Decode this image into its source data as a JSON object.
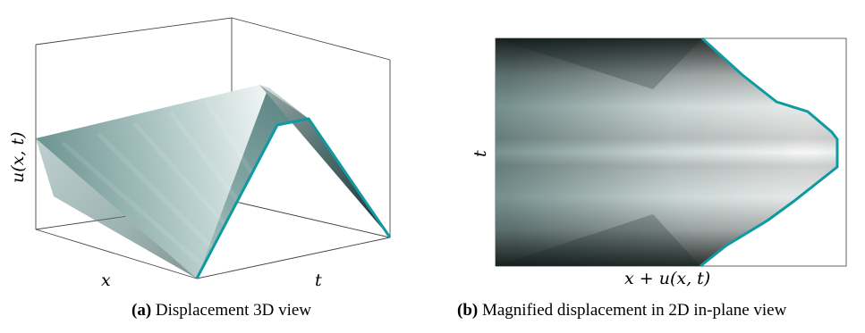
{
  "panel_a": {
    "axis_x": "x",
    "axis_t": "t",
    "axis_u": "u(x, t)",
    "caption_tag": "(a)",
    "caption_text": "Displacement 3D view"
  },
  "panel_b": {
    "axis_x": "x + u(x, t)",
    "axis_t": "t",
    "caption_tag": "(b)",
    "caption_text": "Magnified displacement in 2D in-plane view"
  },
  "colors": {
    "edge": "#0e9aa0",
    "dark": "#0f2323",
    "light": "#f2f7f5"
  }
}
